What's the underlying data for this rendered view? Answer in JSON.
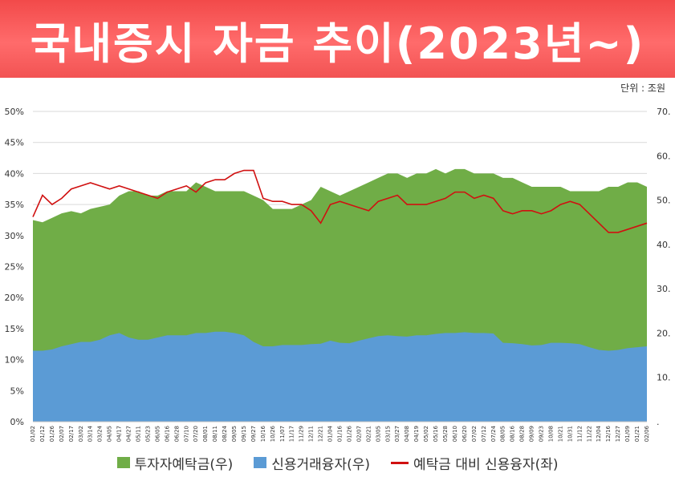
{
  "banner": {
    "title": "국내증시 자금 추이(2023년~)"
  },
  "unit_note": "단위 : 조원",
  "chart_data": {
    "type": "area",
    "title": "국내증시 자금 추이(2023년~)",
    "unit": "단위 : 조원",
    "left_axis": {
      "ticks": [
        "0%",
        "5%",
        "10%",
        "15%",
        "20%",
        "25%",
        "30%",
        "35%",
        "40%",
        "45%",
        "50%"
      ],
      "range": [
        0,
        50
      ]
    },
    "right_axis": {
      "ticks": [
        ".",
        "10.",
        "20.",
        "30.",
        "40.",
        "50.",
        "60.",
        "70."
      ],
      "range": [
        0,
        70
      ]
    },
    "x_labels": [
      "01/02",
      "01/12",
      "01/26",
      "02/07",
      "02/17",
      "03/02",
      "03/14",
      "03/24",
      "04/05",
      "04/17",
      "04/27",
      "05/11",
      "05/23",
      "06/05",
      "06/16",
      "06/28",
      "07/10",
      "07/20",
      "08/01",
      "08/11",
      "08/24",
      "09/05",
      "09/15",
      "09/27",
      "10/16",
      "10/26",
      "11/07",
      "11/17",
      "11/29",
      "12/11",
      "12/21",
      "01/04",
      "01/16",
      "01/26",
      "02/07",
      "02/21",
      "03/05",
      "03/15",
      "03/27",
      "04/08",
      "04/19",
      "05/02",
      "05/16",
      "05/28",
      "06/10",
      "06/20",
      "07/02",
      "07/12",
      "07/24",
      "08/05",
      "08/16",
      "08/28",
      "09/09",
      "09/23",
      "10/08",
      "10/21",
      "10/31",
      "11/12",
      "11/22",
      "12/04",
      "12/16",
      "12/27",
      "01/09",
      "01/21",
      "02/06"
    ],
    "series": [
      {
        "name": "투자자예탁금(우)",
        "type": "area",
        "axis": "right",
        "color": "#70ad47",
        "values": [
          45.5,
          45,
          46,
          47,
          47.5,
          47,
          48,
          48.5,
          49,
          51,
          52,
          52,
          51,
          51,
          52,
          52,
          52,
          54,
          53,
          52,
          52,
          52,
          52,
          51,
          50,
          48,
          48,
          48,
          49,
          50,
          53,
          52,
          51,
          52,
          53,
          54,
          55,
          56,
          56,
          55,
          56,
          56,
          57,
          56,
          57,
          57,
          56,
          56,
          56,
          55,
          55,
          54,
          53,
          53,
          53,
          53,
          52,
          52,
          52,
          52,
          53,
          53,
          54,
          54,
          53
        ]
      },
      {
        "name": "신용거래융자(우)",
        "type": "area",
        "axis": "right",
        "color": "#5b9bd5",
        "values": [
          16,
          16,
          16.3,
          17,
          17.5,
          18,
          18,
          18.5,
          19.5,
          20,
          19,
          18.5,
          18.5,
          19,
          19.5,
          19.5,
          19.5,
          20,
          20,
          20.3,
          20.3,
          20,
          19.5,
          18,
          17,
          17,
          17.3,
          17.3,
          17.3,
          17.5,
          17.6,
          18.3,
          17.8,
          17.7,
          18.3,
          18.8,
          19.3,
          19.5,
          19.3,
          19.2,
          19.5,
          19.5,
          19.8,
          20,
          20,
          20.2,
          20,
          20,
          19.9,
          17.8,
          17.7,
          17.5,
          17.2,
          17.3,
          17.8,
          17.8,
          17.7,
          17.5,
          16.8,
          16.2,
          16,
          16.2,
          16.6,
          16.8,
          17
        ]
      },
      {
        "name": "예탁금 대비 신용융자(좌)",
        "type": "line",
        "axis": "left",
        "color": "#d01010",
        "values": [
          33,
          36.5,
          35,
          36,
          37.5,
          38,
          38.5,
          38,
          37.5,
          38,
          37.5,
          37,
          36.5,
          36,
          37,
          37.5,
          38,
          37,
          38.5,
          39,
          39,
          40,
          40.5,
          40.5,
          36,
          35.5,
          35.5,
          35,
          35,
          34,
          32,
          35,
          35.5,
          35,
          34.5,
          34,
          35.5,
          36,
          36.5,
          35,
          35,
          35,
          35.5,
          36,
          37,
          37,
          36,
          36.5,
          36,
          34,
          33.5,
          34,
          34,
          33.5,
          34,
          35,
          35.5,
          35,
          33.5,
          32,
          30.5,
          30.5,
          31,
          31.5,
          32
        ]
      }
    ]
  }
}
